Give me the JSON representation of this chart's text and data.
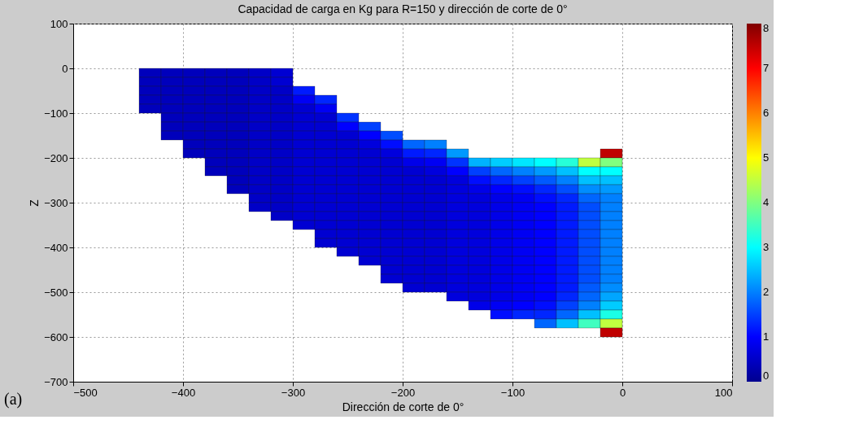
{
  "chart_data": {
    "type": "scatter",
    "title": "Capacidad de carga en Kg para R=150 y dirección de corte de 0°",
    "xlabel": "Dirección de corte de 0°",
    "ylabel": "Z",
    "annotations": [
      "(a)"
    ],
    "marker": "square",
    "grid": true,
    "xlim": [
      -500,
      100
    ],
    "xticks": [
      -500,
      -400,
      -300,
      -200,
      -100,
      0,
      100
    ],
    "ylim": [
      -700,
      100
    ],
    "yticks": [
      -700,
      -600,
      -500,
      -400,
      -300,
      -200,
      -100,
      0,
      100
    ],
    "clim": [
      0,
      8
    ],
    "cticks": [
      0,
      1,
      2,
      3,
      4,
      5,
      6,
      7,
      8
    ],
    "x": [
      -430,
      -430,
      -430,
      -430,
      -430,
      -410,
      -410,
      -410,
      -410,
      -410,
      -410,
      -410,
      -410,
      -390,
      -390,
      -390,
      -390,
      -390,
      -390,
      -390,
      -390,
      -390,
      -390,
      -370,
      -370,
      -370,
      -370,
      -370,
      -370,
      -370,
      -370,
      -370,
      -370,
      -370,
      -370,
      -350,
      -350,
      -350,
      -350,
      -350,
      -350,
      -350,
      -350,
      -350,
      -350,
      -350,
      -350,
      -350,
      -350,
      -330,
      -330,
      -330,
      -330,
      -330,
      -330,
      -330,
      -330,
      -330,
      -330,
      -330,
      -330,
      -330,
      -330,
      -330,
      -330,
      -310,
      -310,
      -310,
      -310,
      -310,
      -310,
      -310,
      -310,
      -310,
      -310,
      -310,
      -310,
      -310,
      -310,
      -310,
      -310,
      -310,
      -290,
      -290,
      -290,
      -290,
      -290,
      -290,
      -290,
      -290,
      -290,
      -290,
      -290,
      -290,
      -290,
      -290,
      -290,
      -290,
      -270,
      -270,
      -270,
      -270,
      -270,
      -270,
      -270,
      -270,
      -270,
      -270,
      -270,
      -270,
      -270,
      -270,
      -270,
      -270,
      -270,
      -250,
      -250,
      -250,
      -250,
      -250,
      -250,
      -250,
      -250,
      -250,
      -250,
      -250,
      -250,
      -250,
      -250,
      -250,
      -250,
      -230,
      -230,
      -230,
      -230,
      -230,
      -230,
      -230,
      -230,
      -230,
      -230,
      -230,
      -230,
      -230,
      -230,
      -230,
      -230,
      -210,
      -210,
      -210,
      -210,
      -210,
      -210,
      -210,
      -210,
      -210,
      -210,
      -210,
      -210,
      -210,
      -210,
      -210,
      -210,
      -210,
      -190,
      -190,
      -190,
      -190,
      -190,
      -190,
      -190,
      -190,
      -190,
      -190,
      -190,
      -190,
      -190,
      -190,
      -190,
      -190,
      -190,
      -170,
      -170,
      -170,
      -170,
      -170,
      -170,
      -170,
      -170,
      -170,
      -170,
      -170,
      -170,
      -170,
      -170,
      -170,
      -170,
      -170,
      -150,
      -150,
      -150,
      -150,
      -150,
      -150,
      -150,
      -150,
      -150,
      -150,
      -150,
      -150,
      -150,
      -150,
      -150,
      -150,
      -150,
      -130,
      -130,
      -130,
      -130,
      -130,
      -130,
      -130,
      -130,
      -130,
      -130,
      -130,
      -130,
      -130,
      -130,
      -130,
      -130,
      -130,
      -110,
      -110,
      -110,
      -110,
      -110,
      -110,
      -110,
      -110,
      -110,
      -110,
      -110,
      -110,
      -110,
      -110,
      -110,
      -110,
      -110,
      -110,
      -90,
      -90,
      -90,
      -90,
      -90,
      -90,
      -90,
      -90,
      -90,
      -90,
      -90,
      -90,
      -90,
      -90,
      -90,
      -90,
      -90,
      -90,
      -70,
      -70,
      -70,
      -70,
      -70,
      -70,
      -70,
      -70,
      -70,
      -70,
      -70,
      -70,
      -70,
      -70,
      -70,
      -70,
      -70,
      -70,
      -70,
      -50,
      -50,
      -50,
      -50,
      -50,
      -50,
      -50,
      -50,
      -50,
      -50,
      -50,
      -50,
      -50,
      -50,
      -50,
      -50,
      -50,
      -50,
      -50,
      -30,
      -30,
      -30,
      -30,
      -30,
      -30,
      -30,
      -30,
      -30,
      -30,
      -30,
      -30,
      -30,
      -30,
      -30,
      -30,
      -30,
      -30,
      -30,
      -10,
      -10,
      -10,
      -10,
      -10,
      -10,
      -10,
      -10,
      -10,
      -10,
      -10,
      -10,
      -10,
      -10,
      -10,
      -10,
      -10,
      -10,
      -10,
      -10,
      -10
    ],
    "values": [
      -10,
      -30,
      -50,
      -70,
      -90,
      -10,
      -30,
      -50,
      -70,
      -90,
      -110,
      -130,
      -150,
      -10,
      -30,
      -50,
      -70,
      -90,
      -110,
      -130,
      -150,
      -170,
      -190,
      -10,
      -30,
      -50,
      -70,
      -90,
      -110,
      -130,
      -150,
      -170,
      -190,
      -210,
      -230,
      -10,
      -30,
      -50,
      -70,
      -90,
      -110,
      -130,
      -150,
      -170,
      -190,
      -210,
      -230,
      -250,
      -270,
      -10,
      -30,
      -50,
      -70,
      -90,
      -110,
      -130,
      -150,
      -170,
      -190,
      -210,
      -230,
      -250,
      -270,
      -290,
      -310,
      -10,
      -30,
      -50,
      -70,
      -90,
      -110,
      -130,
      -150,
      -170,
      -190,
      -210,
      -230,
      -250,
      -270,
      -290,
      -310,
      -330,
      -50,
      -70,
      -90,
      -110,
      -130,
      -150,
      -170,
      -190,
      -210,
      -230,
      -250,
      -270,
      -290,
      -310,
      -330,
      -350,
      -70,
      -90,
      -110,
      -130,
      -150,
      -170,
      -190,
      -210,
      -230,
      -250,
      -270,
      -290,
      -310,
      -330,
      -350,
      -370,
      -390,
      -110,
      -130,
      -150,
      -170,
      -190,
      -210,
      -230,
      -250,
      -270,
      -290,
      -310,
      -330,
      -350,
      -370,
      -390,
      -410,
      -130,
      -150,
      -170,
      -190,
      -210,
      -230,
      -250,
      -270,
      -290,
      -310,
      -330,
      -350,
      -370,
      -390,
      -410,
      -430,
      -150,
      -170,
      -190,
      -210,
      -230,
      -250,
      -270,
      -290,
      -310,
      -330,
      -350,
      -370,
      -390,
      -410,
      -430,
      -450,
      -470,
      -170,
      -190,
      -210,
      -230,
      -250,
      -270,
      -290,
      -310,
      -330,
      -350,
      -370,
      -390,
      -410,
      -430,
      -450,
      -470,
      -490,
      -170,
      -190,
      -210,
      -230,
      -250,
      -270,
      -290,
      -310,
      -330,
      -350,
      -370,
      -390,
      -410,
      -430,
      -450,
      -470,
      -490,
      -190,
      -210,
      -230,
      -250,
      -270,
      -290,
      -310,
      -330,
      -350,
      -370,
      -390,
      -410,
      -430,
      -450,
      -470,
      -490,
      -510,
      -210,
      -230,
      -250,
      -270,
      -290,
      -310,
      -330,
      -350,
      -370,
      -390,
      -410,
      -430,
      -450,
      -470,
      -490,
      -510,
      -530,
      -210,
      -230,
      -250,
      -270,
      -290,
      -310,
      -330,
      -350,
      -370,
      -390,
      -410,
      -430,
      -450,
      -470,
      -490,
      -510,
      -530,
      -550,
      -210,
      -230,
      -250,
      -270,
      -290,
      -310,
      -330,
      -350,
      -370,
      -390,
      -410,
      -430,
      -450,
      -470,
      -490,
      -510,
      -530,
      -550,
      -210,
      -230,
      -250,
      -270,
      -290,
      -310,
      -330,
      -350,
      -370,
      -390,
      -410,
      -430,
      -450,
      -470,
      -490,
      -510,
      -530,
      -550,
      -570,
      -210,
      -230,
      -250,
      -270,
      -290,
      -310,
      -330,
      -350,
      -370,
      -390,
      -410,
      -430,
      -450,
      -470,
      -490,
      -510,
      -530,
      -550,
      -570,
      -210,
      -230,
      -250,
      -270,
      -290,
      -310,
      -330,
      -350,
      -370,
      -390,
      -410,
      -430,
      -450,
      -470,
      -490,
      -510,
      -530,
      -550,
      -570,
      -190,
      -210,
      -230,
      -250,
      -270,
      -290,
      -310,
      -330,
      -350,
      -370,
      -390,
      -410,
      -430,
      -450,
      -470,
      -490,
      -510,
      -530,
      -550,
      -570,
      -590
    ],
    "cvalues": [
      0.4,
      0.4,
      0.4,
      0.4,
      0.4,
      0.4,
      0.4,
      0.4,
      0.4,
      0.4,
      0.4,
      0.4,
      0.4,
      0.4,
      0.4,
      0.4,
      0.4,
      0.4,
      0.4,
      0.4,
      0.4,
      0.4,
      0.4,
      0.4,
      0.4,
      0.4,
      0.4,
      0.4,
      0.4,
      0.4,
      0.4,
      0.4,
      0.4,
      0.4,
      0.4,
      0.4,
      0.4,
      0.4,
      0.4,
      0.4,
      0.4,
      0.4,
      0.4,
      0.4,
      0.4,
      0.4,
      0.4,
      0.4,
      0.4,
      0.5,
      0.5,
      0.5,
      0.5,
      0.5,
      0.5,
      0.5,
      0.5,
      0.5,
      0.5,
      0.5,
      0.5,
      0.5,
      0.5,
      0.5,
      0.5,
      0.6,
      0.6,
      0.5,
      0.5,
      0.5,
      0.5,
      0.5,
      0.5,
      0.5,
      0.5,
      0.5,
      0.5,
      0.5,
      0.5,
      0.5,
      0.5,
      0.5,
      1.2,
      0.9,
      0.6,
      0.6,
      0.6,
      0.6,
      0.6,
      0.6,
      0.6,
      0.6,
      0.6,
      0.6,
      0.6,
      0.6,
      0.6,
      0.6,
      1.3,
      0.9,
      0.6,
      0.6,
      0.6,
      0.6,
      0.6,
      0.6,
      0.6,
      0.6,
      0.6,
      0.6,
      0.6,
      0.6,
      0.6,
      0.6,
      0.6,
      1.4,
      1,
      0.6,
      0.6,
      0.6,
      0.6,
      0.6,
      0.6,
      0.6,
      0.6,
      0.6,
      0.6,
      0.6,
      0.6,
      0.6,
      0.6,
      1.5,
      1,
      0.7,
      0.6,
      0.6,
      0.6,
      0.6,
      0.6,
      0.6,
      0.6,
      0.6,
      0.6,
      0.6,
      0.6,
      0.6,
      0.6,
      1.6,
      1.1,
      0.7,
      0.6,
      0.6,
      0.6,
      0.6,
      0.6,
      0.6,
      0.6,
      0.6,
      0.6,
      0.6,
      0.6,
      0.6,
      0.6,
      0.6,
      1.8,
      1.2,
      0.8,
      0.6,
      0.6,
      0.6,
      0.6,
      0.6,
      0.6,
      0.6,
      0.6,
      0.6,
      0.6,
      0.6,
      0.6,
      0.6,
      0.6,
      2,
      1.3,
      0.9,
      0.7,
      0.6,
      0.6,
      0.6,
      0.6,
      0.6,
      0.6,
      0.6,
      0.6,
      0.6,
      0.6,
      0.6,
      0.6,
      0.6,
      2.2,
      1.4,
      1,
      0.7,
      0.7,
      0.7,
      0.7,
      0.7,
      0.7,
      0.7,
      0.7,
      0.7,
      0.7,
      0.7,
      0.7,
      0.7,
      0.7,
      2.4,
      1.5,
      1.1,
      0.8,
      0.7,
      0.7,
      0.7,
      0.7,
      0.7,
      0.7,
      0.7,
      0.7,
      0.7,
      0.7,
      0.7,
      0.7,
      0.8,
      2.6,
      1.8,
      1.3,
      1,
      0.8,
      0.8,
      0.8,
      0.8,
      0.8,
      0.8,
      0.8,
      0.8,
      0.8,
      0.8,
      0.8,
      0.8,
      0.9,
      1.1,
      2.8,
      2,
      1.5,
      1.1,
      0.9,
      0.9,
      0.9,
      0.9,
      0.9,
      0.9,
      0.9,
      0.9,
      0.9,
      0.9,
      0.9,
      0.9,
      1,
      1.3,
      3,
      2.2,
      1.7,
      1.3,
      1.1,
      1,
      1,
      1,
      1,
      1,
      1,
      1,
      1,
      1,
      1,
      1,
      1.1,
      1.3,
      1.8,
      3.3,
      2.5,
      2,
      1.6,
      1.3,
      1.2,
      1.2,
      1.2,
      1.2,
      1.2,
      1.2,
      1.2,
      1.2,
      1.2,
      1.2,
      1.3,
      1.5,
      1.8,
      2.5,
      4.5,
      3,
      2.5,
      2.1,
      1.8,
      1.6,
      1.6,
      1.6,
      1.6,
      1.6,
      1.6,
      1.6,
      1.6,
      1.6,
      1.7,
      1.8,
      2,
      2.5,
      3.5,
      7.5,
      4,
      3,
      2.5,
      2.2,
      2,
      2,
      2,
      2,
      2,
      2,
      2,
      2,
      2,
      2,
      2.1,
      2.3,
      2.6,
      3.2,
      4.5,
      7.5
    ]
  }
}
